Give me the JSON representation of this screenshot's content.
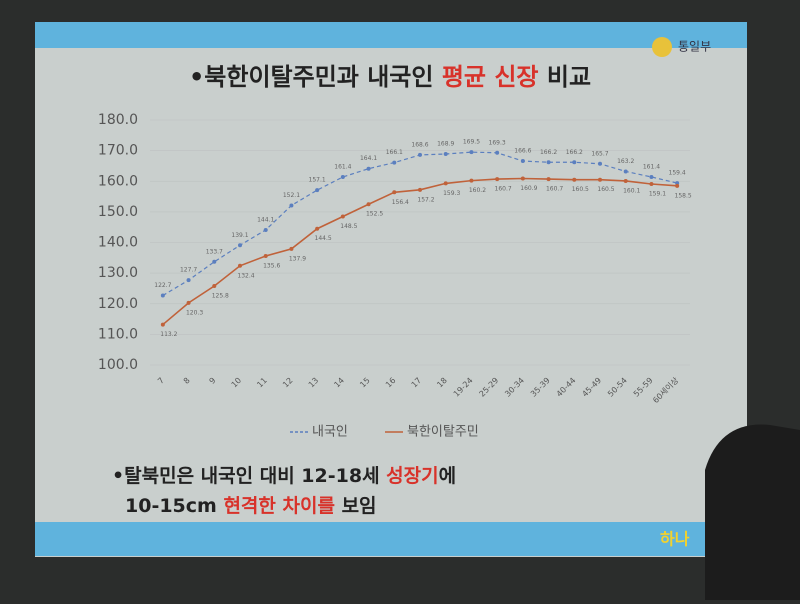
{
  "slide": {
    "logo": "통일부",
    "title": [
      "•북한이탈주민과 내국인 ",
      "평균 신장",
      " 비교"
    ],
    "notes": [
      [
        "•탈북민은 내국인 대비 12-18세 ",
        "성장기",
        "에"
      ],
      [
        "10-15cm ",
        "현격한 차이를",
        " 보임"
      ]
    ],
    "footer": "하나"
  },
  "chart_data": {
    "type": "line",
    "categories": [
      "7",
      "8",
      "9",
      "10",
      "11",
      "12",
      "13",
      "14",
      "15",
      "16",
      "17",
      "18",
      "19-24",
      "25-29",
      "30-34",
      "35-39",
      "40-44",
      "45-49",
      "50-54",
      "55-59",
      "60세이상"
    ],
    "series": [
      {
        "name": "내국인",
        "color": "#5b7fbf",
        "dashed": true,
        "values": [
          122.7,
          127.7,
          133.7,
          139.1,
          144.1,
          152.1,
          157.1,
          161.4,
          164.1,
          166.1,
          168.6,
          168.9,
          169.5,
          169.3,
          166.6,
          166.2,
          166.2,
          165.7,
          163.2,
          161.4,
          159.4
        ],
        "value_labels": [
          "122.7",
          "127.7",
          "133.7",
          "139.1",
          "144.1",
          "152.1",
          "157.1",
          "161.4",
          "164.1",
          "166.1",
          "168.6",
          "168.9",
          "169.5",
          "169.3",
          "166.6",
          "166.2",
          "166.2",
          "165.7",
          "163.2",
          "161.4",
          "159.4"
        ]
      },
      {
        "name": "북한이탈주민",
        "color": "#c0623a",
        "dashed": false,
        "values": [
          113.2,
          120.3,
          125.8,
          132.4,
          135.6,
          137.9,
          144.5,
          148.5,
          152.5,
          156.4,
          157.2,
          159.3,
          160.2,
          160.7,
          160.9,
          160.7,
          160.5,
          160.5,
          160.1,
          159.1,
          158.5
        ],
        "value_labels": [
          "113.2",
          "120.3",
          "125.8",
          "132.4",
          "135.6",
          "137.9",
          "144.5",
          "148.5",
          "152.5",
          "156.4",
          "157.2",
          "159.3",
          "160.2",
          "160.7",
          "160.9",
          "160.7",
          "160.5",
          "160.5",
          "160.1",
          "159.1",
          "158.5"
        ]
      }
    ],
    "ylim": [
      100,
      180
    ],
    "yticks": [
      {
        "value": 100,
        "label": "100.0"
      },
      {
        "value": 110,
        "label": "110.0"
      },
      {
        "value": 120,
        "label": "120.0"
      },
      {
        "value": 130,
        "label": "130.0"
      },
      {
        "value": 140,
        "label": "140.0"
      },
      {
        "value": 150,
        "label": "150.0"
      },
      {
        "value": 160,
        "label": "160.0"
      },
      {
        "value": 170,
        "label": "170.0"
      },
      {
        "value": 180,
        "label": "180.0"
      }
    ],
    "grid": true
  }
}
